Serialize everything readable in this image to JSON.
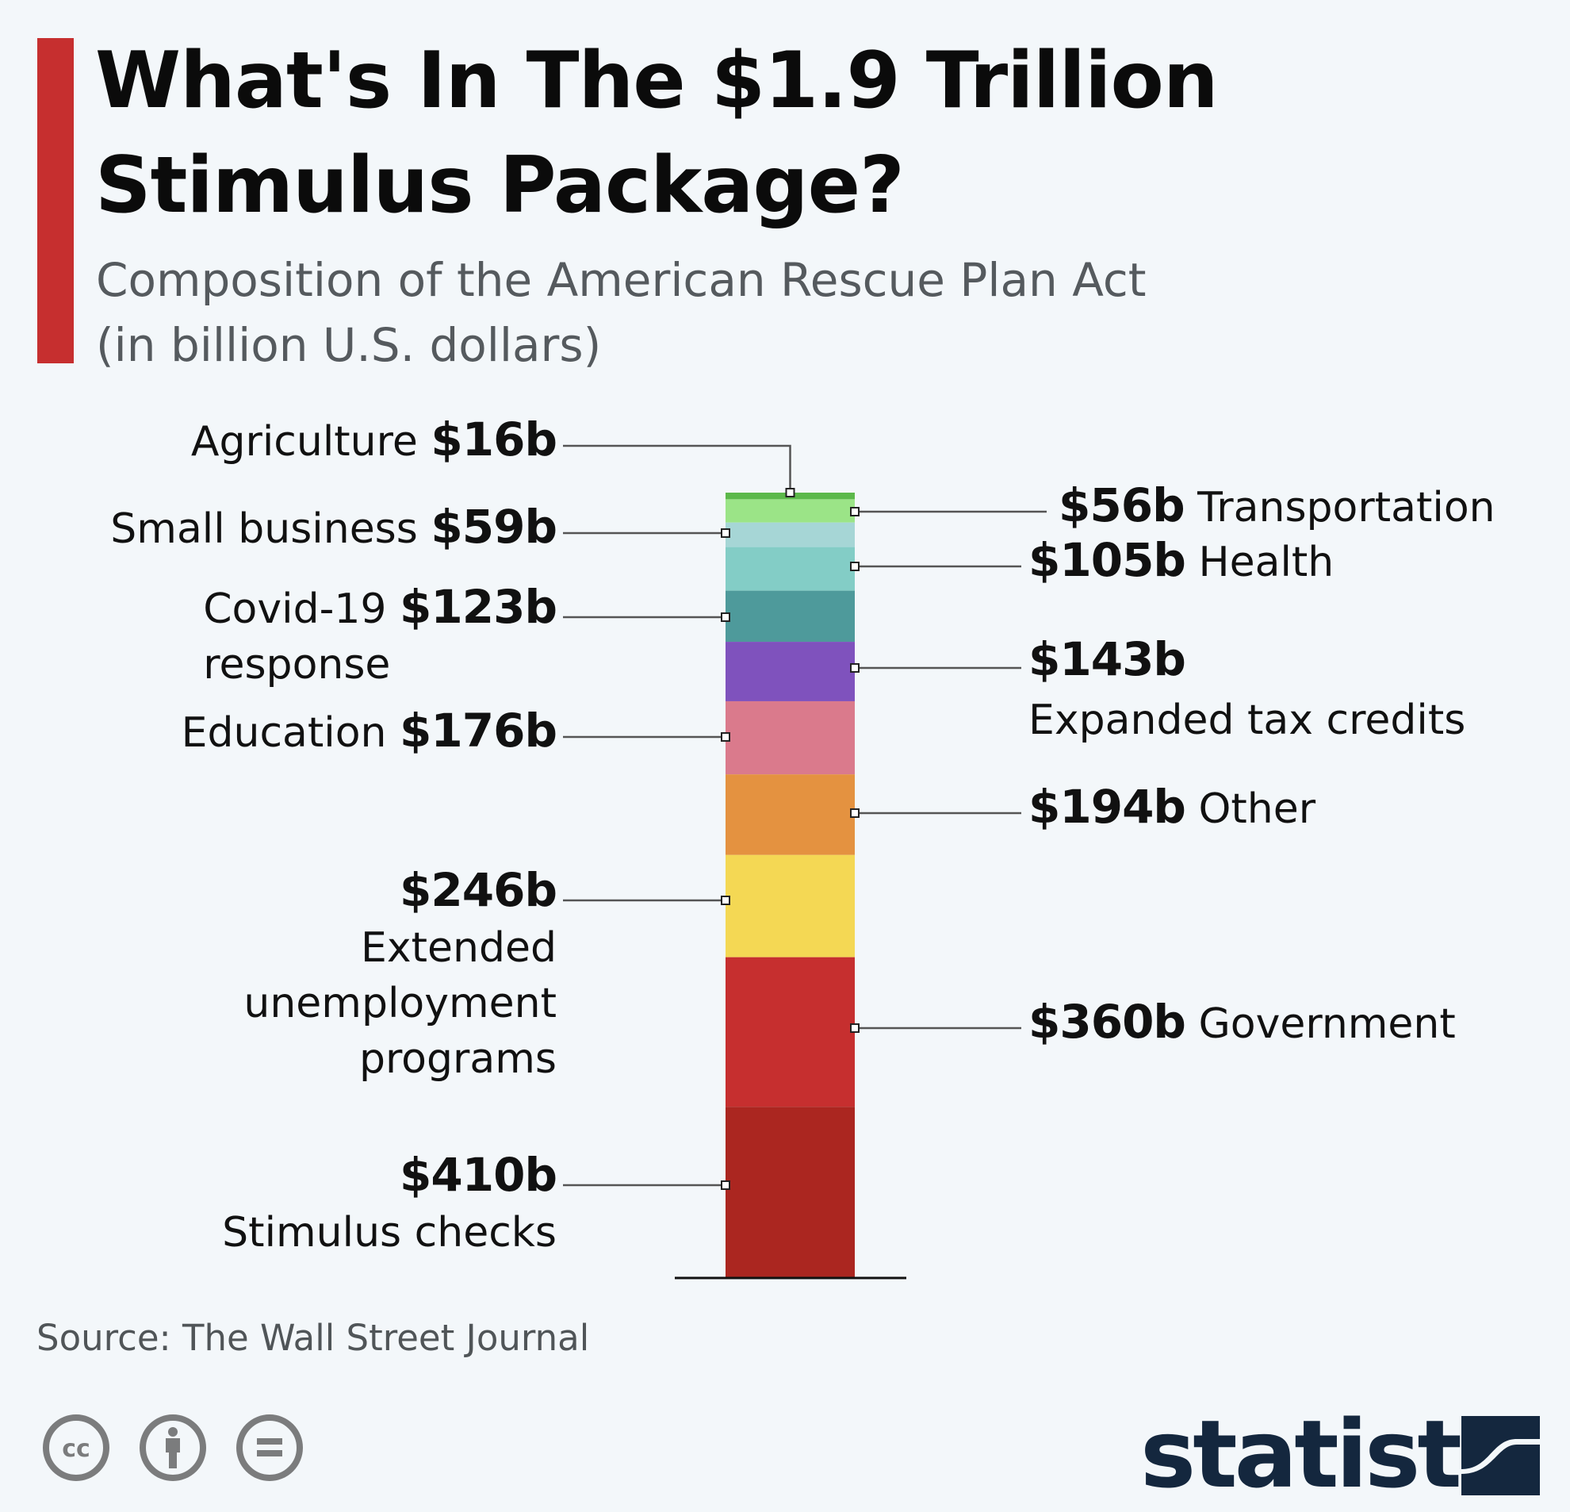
{
  "header": {
    "title_line1": "What's In The $1.9 Trillion",
    "title_line2": "Stimulus Package?",
    "subtitle_line1": "Composition of the American Rescue Plan Act",
    "subtitle_line2": "(in billion U.S. dollars)",
    "accent_color": "#c62f2f"
  },
  "chart_data": {
    "type": "bar",
    "stacked": true,
    "title": "What's In The $1.9 Trillion Stimulus Package?",
    "subtitle": "Composition of the American Rescue Plan Act (in billion U.S. dollars)",
    "unit": "billion U.S. dollars",
    "segments": [
      {
        "name": "Agriculture",
        "value": 16,
        "label": "$16b",
        "side": "left",
        "color": "#5cb84a",
        "text": [
          "Agriculture"
        ]
      },
      {
        "name": "Transportation",
        "value": 56,
        "label": "$56b",
        "side": "right",
        "color": "#9be487",
        "text": [
          "Transportation"
        ]
      },
      {
        "name": "Small business",
        "value": 59,
        "label": "$59b",
        "side": "left",
        "color": "#a6d6d6",
        "text": [
          "Small business"
        ]
      },
      {
        "name": "Health",
        "value": 105,
        "label": "$105b",
        "side": "right",
        "color": "#83cdc6",
        "text": [
          "Health"
        ]
      },
      {
        "name": "Covid-19 response",
        "value": 123,
        "label": "$123b",
        "side": "left",
        "color": "#4e9a9b",
        "text": [
          "Covid-19",
          "response"
        ]
      },
      {
        "name": "Expanded tax credits",
        "value": 143,
        "label": "$143b",
        "side": "right",
        "color": "#7f52bd",
        "text": [
          "Expanded tax credits"
        ]
      },
      {
        "name": "Education",
        "value": 176,
        "label": "$176b",
        "side": "left",
        "color": "#da7a8c",
        "text": [
          "Education"
        ]
      },
      {
        "name": "Other",
        "value": 194,
        "label": "$194b",
        "side": "right",
        "color": "#e49240",
        "text": [
          "Other"
        ]
      },
      {
        "name": "Extended unemployment programs",
        "value": 246,
        "label": "$246b",
        "side": "left",
        "color": "#f4d854",
        "text": [
          "Extended",
          "unemployment",
          "programs"
        ]
      },
      {
        "name": "Government",
        "value": 360,
        "label": "$360b",
        "side": "right",
        "color": "#c62f2f",
        "text": [
          "Government"
        ]
      },
      {
        "name": "Stimulus checks",
        "value": 410,
        "label": "$410b",
        "side": "left",
        "color": "#ab2620",
        "text": [
          "Stimulus checks"
        ]
      }
    ]
  },
  "footer": {
    "source": "Source: The Wall Street Journal",
    "license_icons": [
      "cc-icon",
      "by-attribution-icon",
      "no-derivatives-icon"
    ],
    "logo_text": "statista",
    "logo_color": "#14273e"
  }
}
